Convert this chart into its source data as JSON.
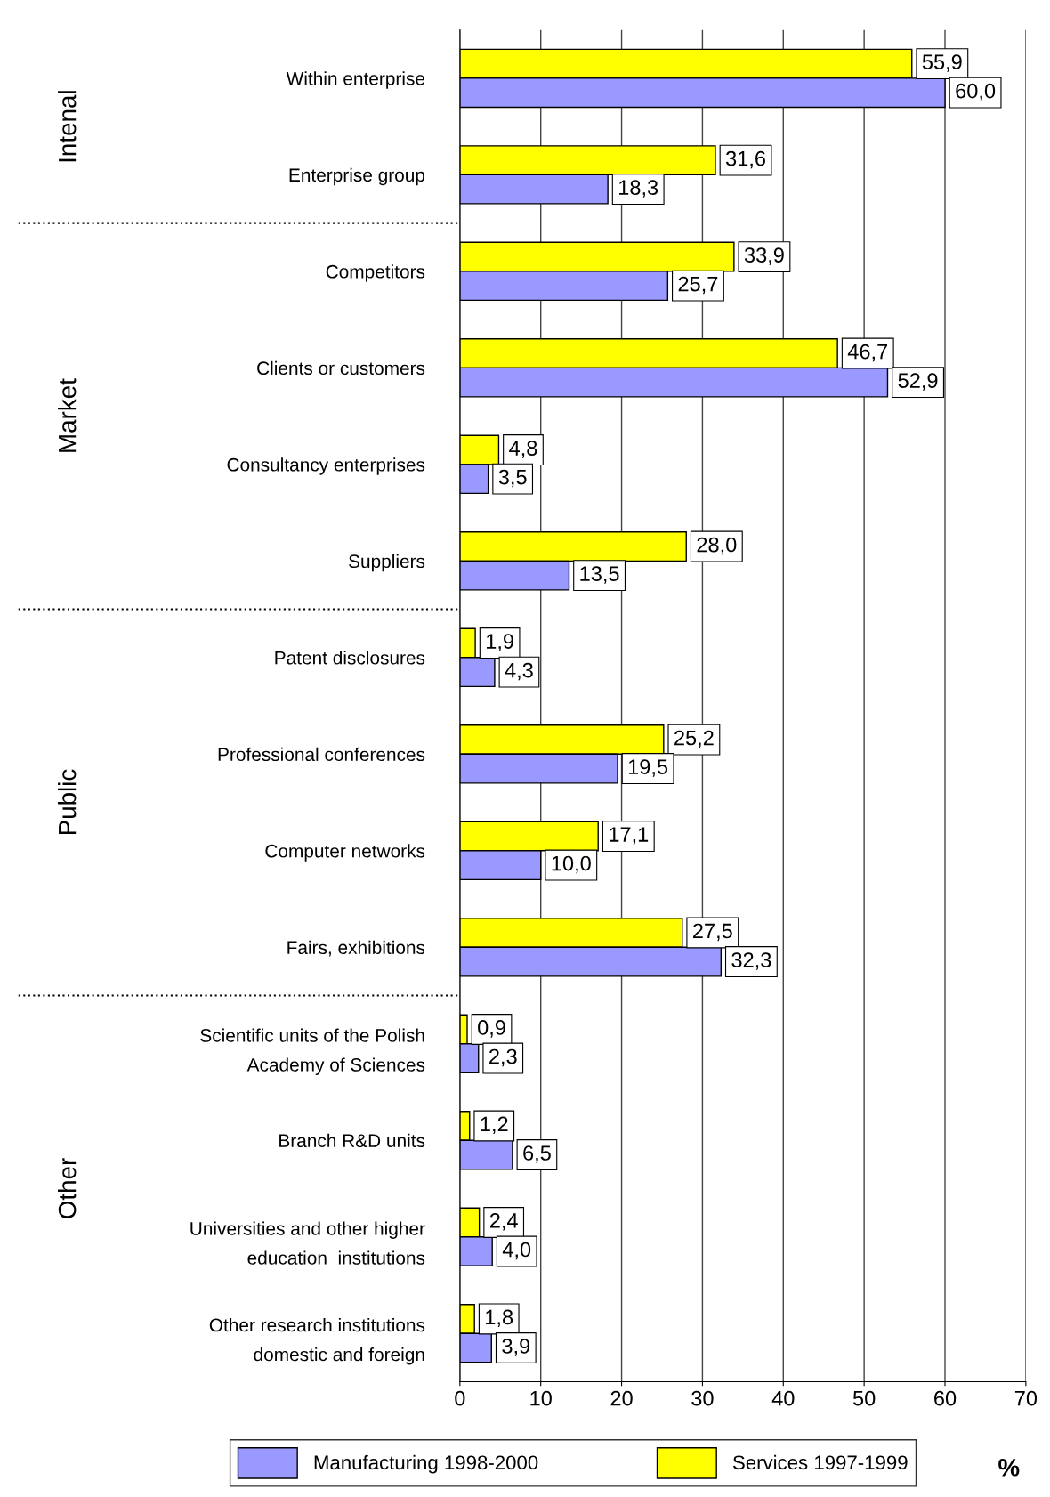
{
  "chart_data": {
    "type": "bar",
    "orientation": "horizontal",
    "xlabel": "%",
    "categories": [
      "Within enterprise",
      "Enterprise group",
      "Competitors",
      "Clients or customers",
      "Consultancy enterprises",
      "Suppliers",
      "Patent disclosures",
      "Professional conferences",
      "Computer networks",
      "Fairs, exhibitions",
      "Scientific units of the Polish\nAcademy of Sciences",
      "Branch R&D units",
      "Universities and other higher\neducation  institutions",
      "Other research institutions\ndomestic and foreign"
    ],
    "series": [
      {
        "name": "Services 1997-1999",
        "color": "#ffff00",
        "values": [
          55.9,
          31.6,
          33.9,
          46.7,
          4.8,
          28.0,
          1.9,
          25.2,
          17.1,
          27.5,
          0.9,
          1.2,
          2.4,
          1.8
        ],
        "value_labels": [
          "55,9",
          "31,6",
          "33,9",
          "46,7",
          "4,8",
          "28,0",
          "1,9",
          "25,2",
          "17,1",
          "27,5",
          "0,9",
          "1,2",
          "2,4",
          "1,8"
        ]
      },
      {
        "name": "Manufacturing 1998-2000",
        "color": "#9999ff",
        "values": [
          60.0,
          18.3,
          25.7,
          52.9,
          3.5,
          13.5,
          4.3,
          19.5,
          10.0,
          32.3,
          2.3,
          6.5,
          4.0,
          3.9
        ],
        "value_labels": [
          "60,0",
          "18,3",
          "25,7",
          "52,9",
          "3,5",
          "13,5",
          "4,3",
          "19,5",
          "10,0",
          "32,3",
          "2,3",
          "6,5",
          "4,0",
          "3,9"
        ]
      }
    ],
    "xlim": [
      0,
      70
    ],
    "xticks": [
      0,
      10,
      20,
      30,
      40,
      50,
      60,
      70
    ],
    "grid": "x",
    "legend": "bottom",
    "annotations": [
      "Intenal",
      "Market",
      "Public",
      "Other"
    ]
  }
}
